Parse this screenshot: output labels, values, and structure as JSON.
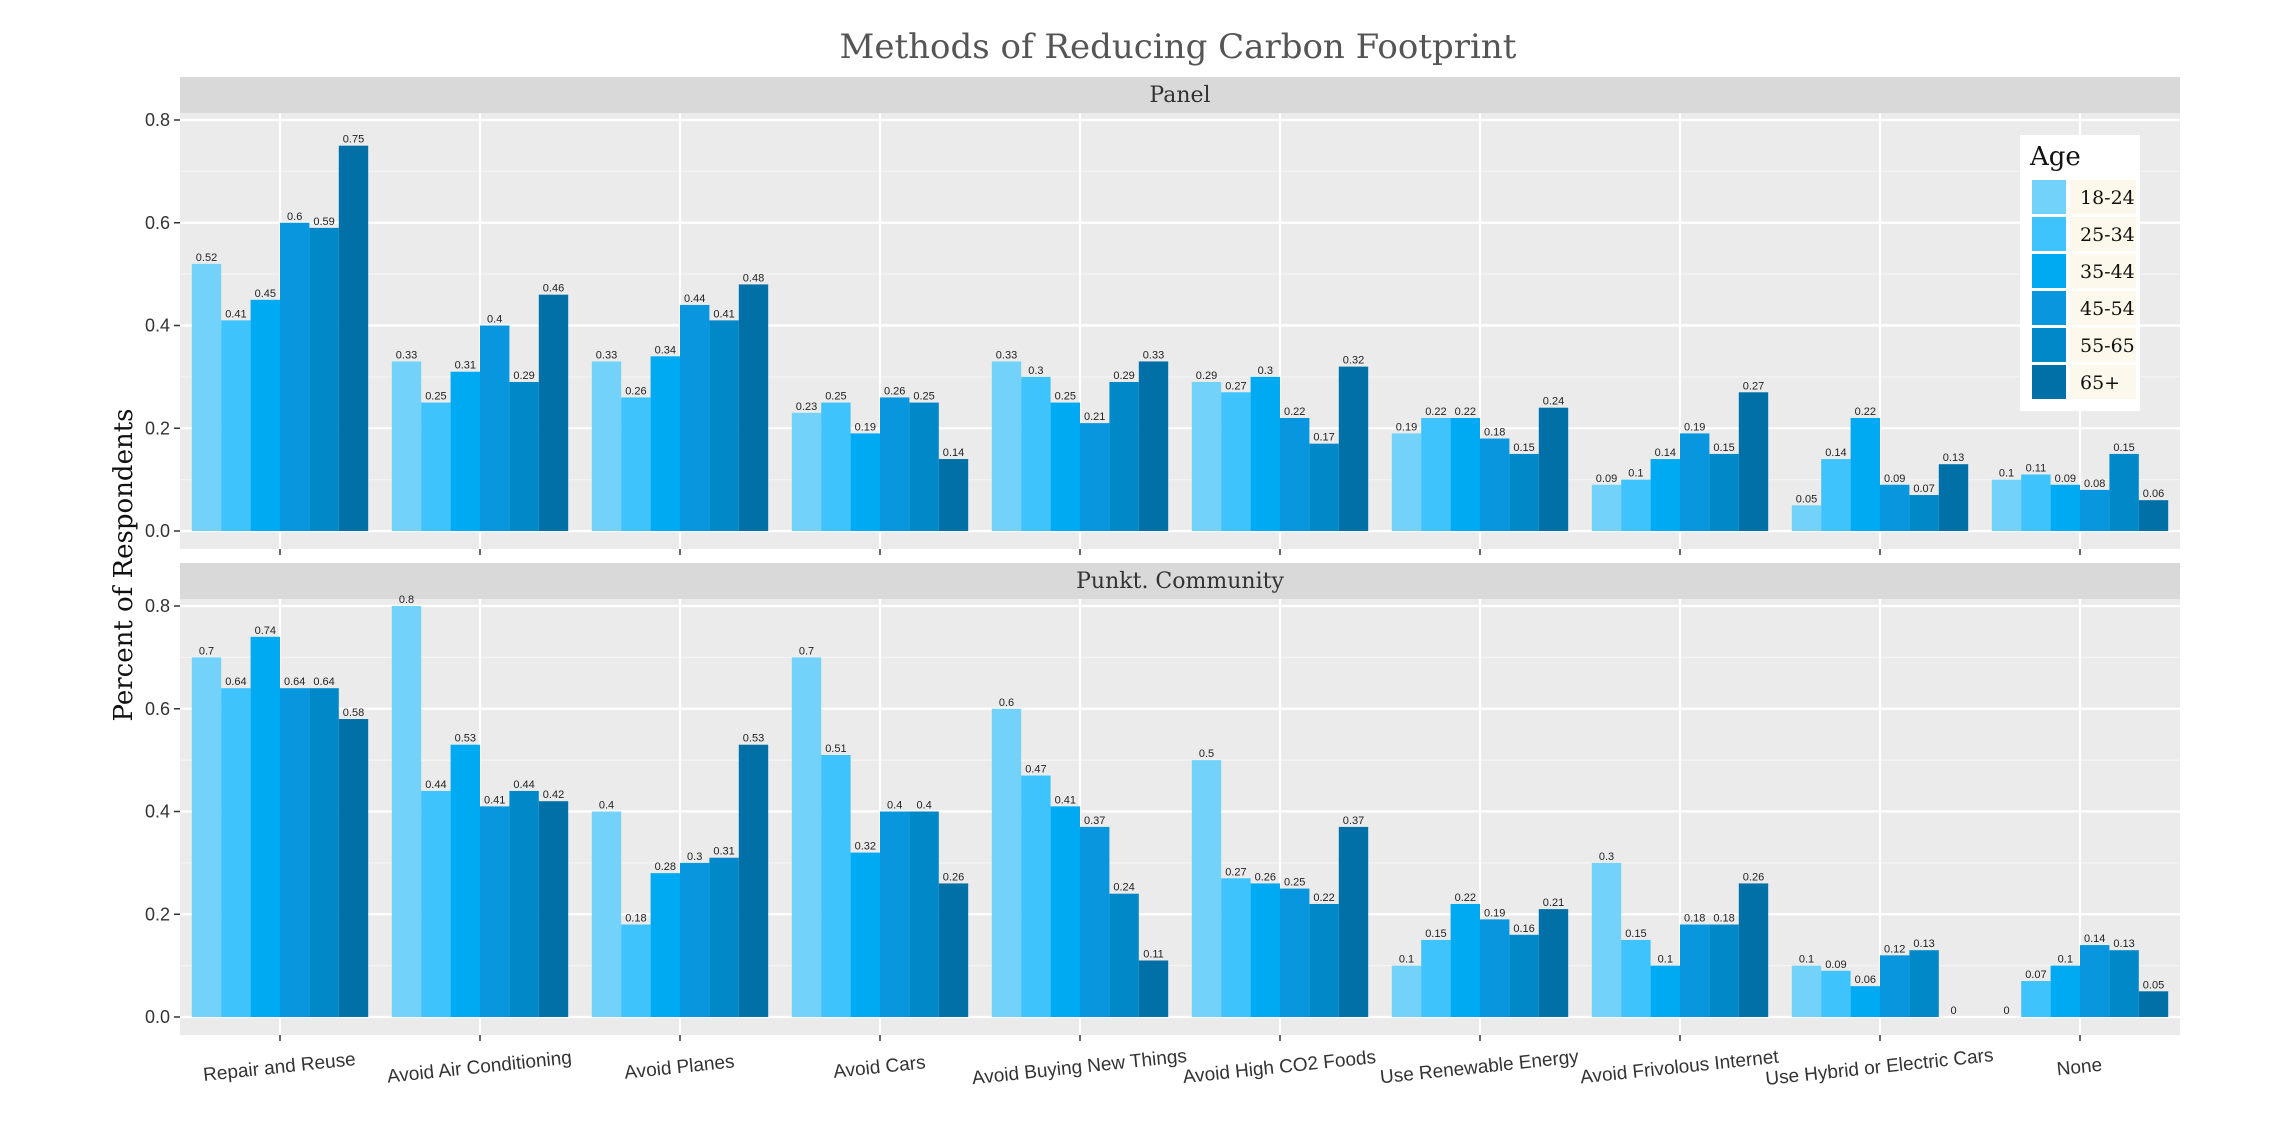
{
  "chart_data": {
    "type": "bar",
    "title": "Methods of Reducing Carbon Footprint",
    "ylabel": "Percent of Respondents",
    "xlabel": "",
    "ylim": [
      0,
      0.85
    ],
    "yticks": [
      "0.0",
      "0.2",
      "0.4",
      "0.6",
      "0.8"
    ],
    "ytick_values": [
      0,
      0.2,
      0.4,
      0.6,
      0.8
    ],
    "categories": [
      "Repair and Reuse",
      "Avoid Air Conditioning",
      "Avoid Planes",
      "Avoid Cars",
      "Avoid Buying New Things",
      "Avoid High CO2 Foods",
      "Use Renewable Energy",
      "Avoid Frivolous Internet",
      "Use Hybrid or Electric Cars",
      "None"
    ],
    "legend": {
      "title": "Age",
      "position": "top-right",
      "labels": [
        "18-24",
        "25-34",
        "35-44",
        "45-54",
        "55-65",
        "65+"
      ],
      "colors": [
        "#73d2fa",
        "#3ec3fc",
        "#00aaf2",
        "#0897de",
        "#0088c9",
        "#0070a6"
      ]
    },
    "grid": true,
    "panels": [
      {
        "name": "Panel",
        "series": [
          {
            "name": "18-24",
            "values": [
              0.52,
              0.33,
              0.33,
              0.23,
              0.33,
              0.29,
              0.19,
              0.09,
              0.05,
              0.1
            ]
          },
          {
            "name": "25-34",
            "values": [
              0.41,
              0.25,
              0.26,
              0.25,
              0.3,
              0.27,
              0.22,
              0.1,
              0.14,
              0.11
            ]
          },
          {
            "name": "35-44",
            "values": [
              0.45,
              0.31,
              0.34,
              0.19,
              0.25,
              0.3,
              0.22,
              0.14,
              0.22,
              0.09
            ]
          },
          {
            "name": "45-54",
            "values": [
              0.6,
              0.4,
              0.44,
              0.26,
              0.21,
              0.22,
              0.18,
              0.19,
              0.09,
              0.08
            ]
          },
          {
            "name": "55-65",
            "values": [
              0.59,
              0.29,
              0.41,
              0.25,
              0.29,
              0.17,
              0.15,
              0.15,
              0.07,
              0.15
            ]
          },
          {
            "name": "65+",
            "values": [
              0.75,
              0.46,
              0.48,
              0.14,
              0.33,
              0.32,
              0.24,
              0.27,
              0.13,
              0.06
            ]
          }
        ]
      },
      {
        "name": "Punkt. Community",
        "series": [
          {
            "name": "18-24",
            "values": [
              0.7,
              0.8,
              0.4,
              0.7,
              0.6,
              0.5,
              0.1,
              0.3,
              0.1,
              0
            ]
          },
          {
            "name": "25-34",
            "values": [
              0.64,
              0.44,
              0.18,
              0.51,
              0.47,
              0.27,
              0.15,
              0.15,
              0.09,
              0.07
            ]
          },
          {
            "name": "35-44",
            "values": [
              0.74,
              0.53,
              0.28,
              0.32,
              0.41,
              0.26,
              0.22,
              0.1,
              0.06,
              0.1
            ]
          },
          {
            "name": "45-54",
            "values": [
              0.64,
              0.41,
              0.3,
              0.4,
              0.37,
              0.25,
              0.19,
              0.18,
              0.12,
              0.14
            ]
          },
          {
            "name": "55-65",
            "values": [
              0.64,
              0.44,
              0.31,
              0.4,
              0.24,
              0.22,
              0.16,
              0.18,
              0.13,
              0.13
            ]
          },
          {
            "name": "65+",
            "values": [
              0.58,
              0.42,
              0.53,
              0.26,
              0.11,
              0.37,
              0.21,
              0.26,
              0,
              0.05
            ]
          }
        ]
      }
    ]
  }
}
